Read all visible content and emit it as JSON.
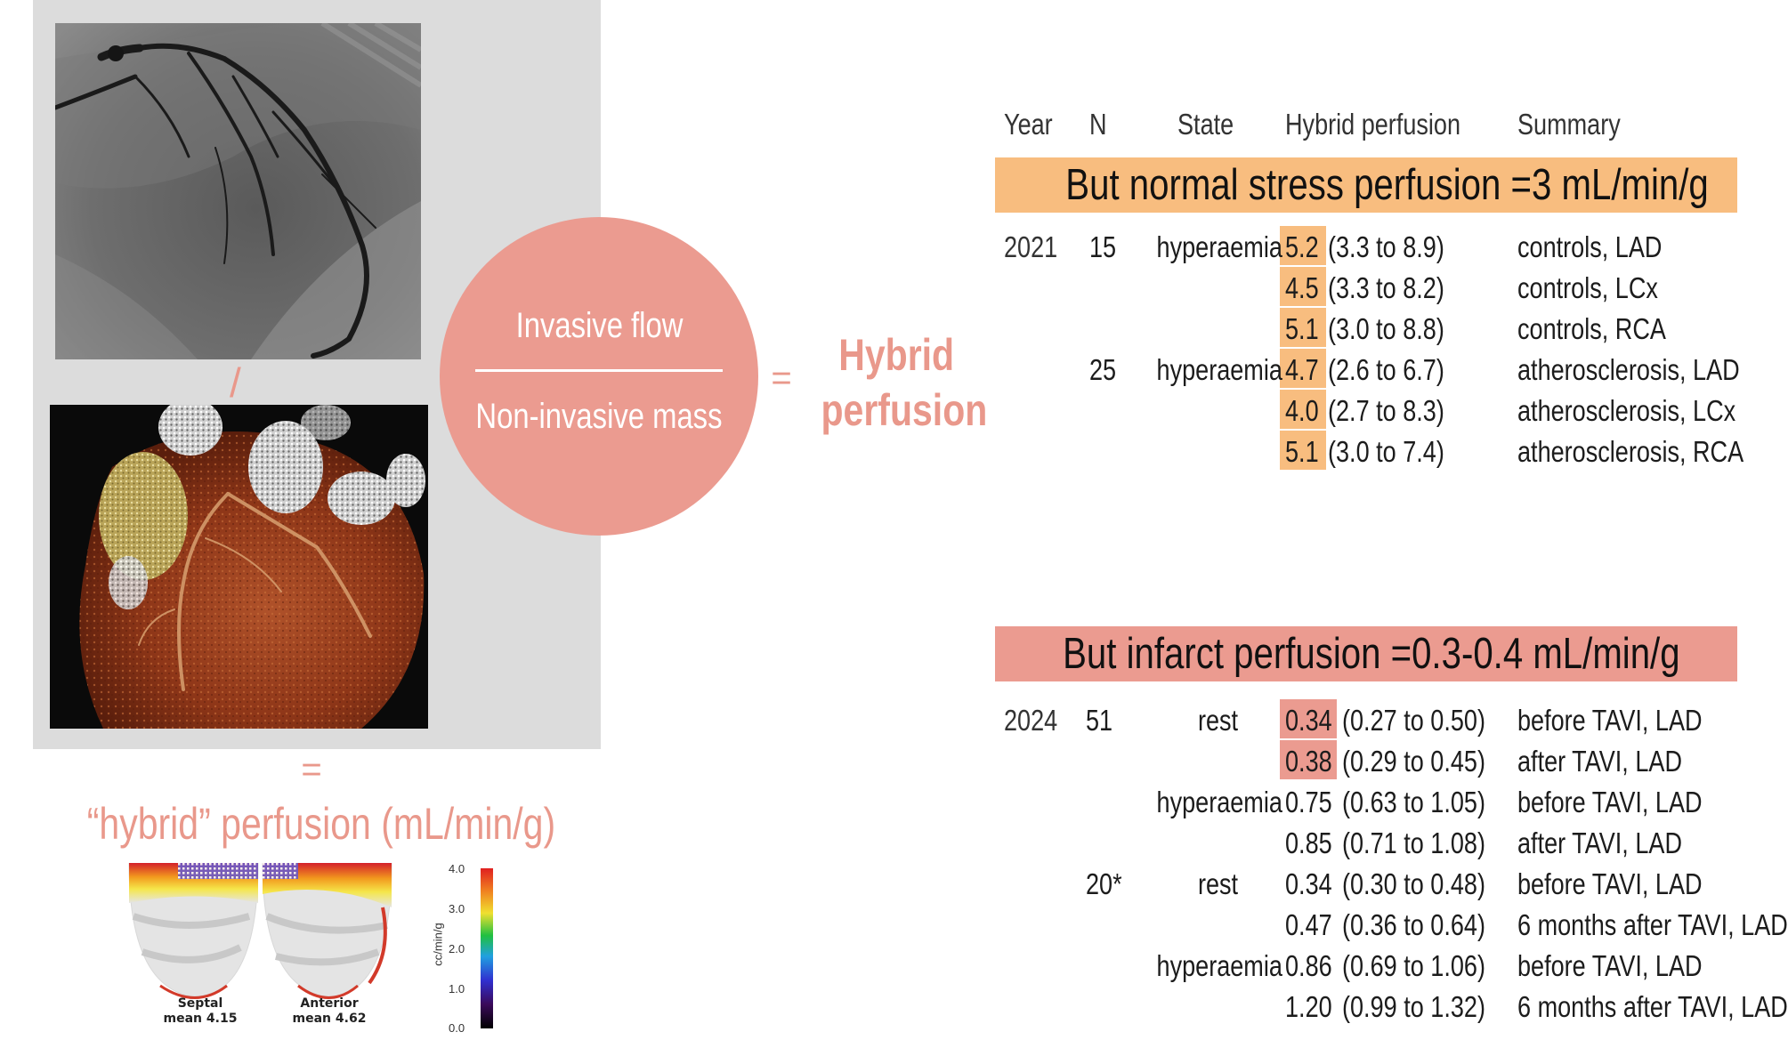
{
  "left": {
    "circle_numerator": "Invasive flow",
    "circle_denominator": "Non-invasive mass",
    "equals_sign": "=",
    "slash": "/",
    "hybrid_label_line1": "Hybrid",
    "hybrid_label_line2": "perfusion",
    "equals_sign_lower": "=",
    "hybrid_unit_label": "“hybrid” perfusion (mL/min/g)",
    "bullseye": {
      "septal_title": "Septal",
      "septal_mean": "mean 4.15",
      "anterior_title": "Anterior",
      "anterior_mean": "mean 4.62",
      "colorbar_label": "cc/min/g",
      "colorbar_ticks": [
        "4.0",
        "3.0",
        "2.0",
        "1.0",
        "0.0"
      ]
    }
  },
  "table": {
    "headers": {
      "year": "Year",
      "n": "N",
      "state": "State",
      "hybrid": "Hybrid perfusion",
      "summary": "Summary"
    },
    "section1": {
      "banner": "But normal stress perfusion =3 mL/min/g",
      "banner_color": "#f8bd7f",
      "highlight_color": "#f8bd7f",
      "rows": [
        {
          "year": "2021",
          "n": "15",
          "state": "hyperaemia",
          "value": "5.2",
          "ci": "(3.3 to 8.9)",
          "summary": "controls, LAD"
        },
        {
          "year": "",
          "n": "",
          "state": "",
          "value": "4.5",
          "ci": "(3.3 to 8.2)",
          "summary": "controls, LCx"
        },
        {
          "year": "",
          "n": "",
          "state": "",
          "value": "5.1",
          "ci": "(3.0 to 8.8)",
          "summary": "controls, RCA"
        },
        {
          "year": "",
          "n": "25",
          "state": "hyperaemia",
          "value": "4.7",
          "ci": "(2.6 to 6.7)",
          "summary": "atherosclerosis, LAD"
        },
        {
          "year": "",
          "n": "",
          "state": "",
          "value": "4.0",
          "ci": "(2.7 to 8.3)",
          "summary": "atherosclerosis, LCx"
        },
        {
          "year": "",
          "n": "",
          "state": "",
          "value": "5.1",
          "ci": "(3.0 to 7.4)",
          "summary": "atherosclerosis, RCA"
        }
      ]
    },
    "section2": {
      "banner": "But infarct perfusion =0.3-0.4 mL/min/g",
      "banner_color": "#eb9b90",
      "highlight_color": "#eb9b90",
      "rows": [
        {
          "year": "2024",
          "n": "51",
          "state": "rest",
          "value": "0.34",
          "ci": "(0.27 to 0.50)",
          "summary": "before TAVI, LAD",
          "highlight": true
        },
        {
          "year": "",
          "n": "",
          "state": "",
          "value": "0.38",
          "ci": "(0.29 to 0.45)",
          "summary": "after TAVI, LAD",
          "highlight": true
        },
        {
          "year": "",
          "n": "",
          "state": "hyperaemia",
          "value": "0.75",
          "ci": "(0.63 to 1.05)",
          "summary": "before TAVI, LAD",
          "highlight": false
        },
        {
          "year": "",
          "n": "",
          "state": "",
          "value": "0.85",
          "ci": "(0.71 to 1.08)",
          "summary": "after TAVI, LAD",
          "highlight": false
        },
        {
          "year": "",
          "n": "20*",
          "state": "rest",
          "value": "0.34",
          "ci": "(0.30 to 0.48)",
          "summary": "before TAVI, LAD",
          "highlight": false
        },
        {
          "year": "",
          "n": "",
          "state": "",
          "value": "0.47",
          "ci": "(0.36 to 0.64)",
          "summary": "6 months after TAVI, LAD",
          "highlight": false
        },
        {
          "year": "",
          "n": "",
          "state": "hyperaemia",
          "value": "0.86",
          "ci": "(0.69 to 1.06)",
          "summary": "before TAVI, LAD",
          "highlight": false
        },
        {
          "year": "",
          "n": "",
          "state": "",
          "value": "1.20",
          "ci": "(0.99 to 1.32)",
          "summary": "6 months after TAVI, LAD",
          "highlight": false
        }
      ]
    }
  }
}
